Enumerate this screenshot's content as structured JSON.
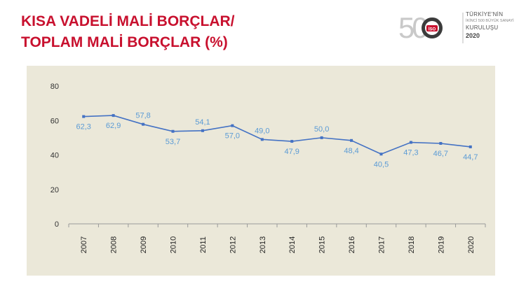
{
  "title": {
    "line1": "KISA VADELİ MALİ BORÇLAR/",
    "line2": "TOPLAM MALİ BORÇLAR (%)"
  },
  "logo": {
    "number": "500",
    "emblem_text": "İSO",
    "line1": "TÜRKİYE'NİN",
    "line2": "İKİNCİ 500 BÜYÜK SANAYİ",
    "line3": "KURULUŞU",
    "year": "2020"
  },
  "colors": {
    "title": "#c8102e",
    "plot_bg": "#ebe8d9",
    "series": "#4472c4",
    "data_label": "#5b9bd5"
  },
  "chart_data": {
    "type": "line",
    "categories": [
      "2007",
      "2008",
      "2009",
      "2010",
      "2011",
      "2012",
      "2013",
      "2014",
      "2015",
      "2016",
      "2017",
      "2018",
      "2019",
      "2020"
    ],
    "series": [
      {
        "values": [
          62.3,
          62.9,
          57.8,
          53.7,
          54.1,
          57.0,
          49.0,
          47.9,
          50.0,
          48.4,
          40.5,
          47.3,
          46.7,
          44.7
        ],
        "labels": [
          "62,3",
          "62,9",
          "57,8",
          "53,7",
          "54,1",
          "57,0",
          "49,0",
          "47,9",
          "50,0",
          "48,4",
          "40,5",
          "47,3",
          "46,7",
          "44,7"
        ],
        "label_positions": [
          "below",
          "below",
          "above",
          "below",
          "above",
          "below",
          "above",
          "below",
          "above",
          "below",
          "below",
          "below",
          "below",
          "below"
        ]
      }
    ],
    "yticks": [
      "0",
      "20",
      "40",
      "60",
      "80"
    ],
    "ylim": [
      0,
      80
    ],
    "grid": false,
    "legend": "none"
  }
}
